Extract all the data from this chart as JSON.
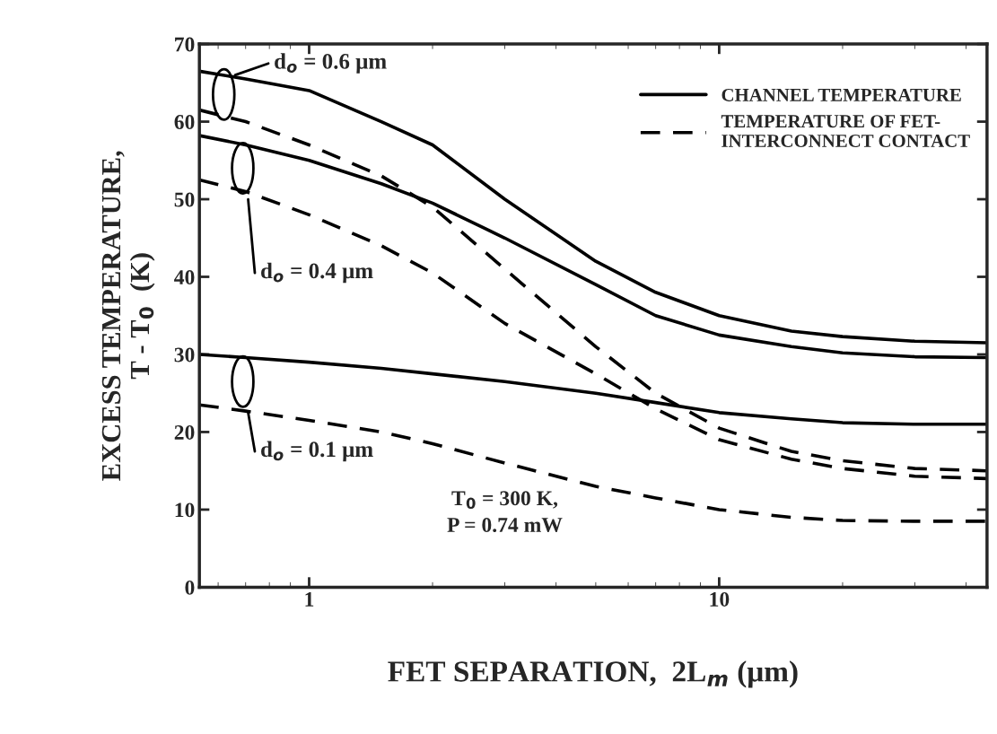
{
  "chart_data": {
    "type": "line",
    "xlabel": "FET SEPARATION,  2L$_{m}$ (μm)",
    "ylabel": "EXCESS TEMPERATURE,\nT - T$_{0}$  (K)",
    "log": "x",
    "xlim": [
      0.54,
      45
    ],
    "xticks": [
      1,
      10
    ],
    "ylim": [
      0,
      70
    ],
    "yticks": [
      0,
      10,
      20,
      30,
      40,
      50,
      60,
      70
    ],
    "legend": "top right",
    "grid": false,
    "marker": "none",
    "series": [
      {
        "name": "CHANNEL TEMPERATURE",
        "color": "#000000",
        "line_style": "solid",
        "x": [
          0.54,
          0.7,
          1,
          1.5,
          2,
          3,
          5,
          7,
          10,
          15,
          20,
          30,
          45
        ],
        "values": [
          66.5,
          65.5,
          64,
          60,
          57,
          50,
          42,
          38,
          35,
          33,
          32.3,
          31.7,
          31.5
        ]
      },
      {
        "color": "#000000",
        "line_style": "solid",
        "x": [
          0.54,
          0.7,
          1,
          1.5,
          2,
          3,
          5,
          7,
          10,
          15,
          20,
          30,
          45
        ],
        "values": [
          58.2,
          57,
          55,
          52,
          49.5,
          45,
          39,
          35,
          32.5,
          31,
          30.2,
          29.7,
          29.6
        ]
      },
      {
        "color": "#000000",
        "line_style": "solid",
        "x": [
          0.54,
          0.7,
          1,
          1.5,
          2,
          3,
          5,
          7,
          10,
          15,
          20,
          30,
          45
        ],
        "values": [
          30,
          29.6,
          29,
          28.2,
          27.5,
          26.5,
          25,
          23.8,
          22.5,
          21.7,
          21.2,
          21,
          21
        ]
      },
      {
        "name": "TEMPERATURE OF FET-\nINTERCONNECT CONTACT",
        "color": "#000000",
        "line_style": "dashed",
        "x": [
          0.54,
          0.7,
          1,
          1.5,
          2,
          3,
          5,
          7,
          10,
          15,
          20,
          30,
          45
        ],
        "values": [
          61.5,
          60,
          57,
          53,
          49,
          41,
          31,
          25,
          20.5,
          17.5,
          16.3,
          15.3,
          15
        ]
      },
      {
        "color": "#000000",
        "line_style": "dashed",
        "x": [
          0.54,
          0.7,
          1,
          1.5,
          2,
          3,
          5,
          7,
          10,
          15,
          20,
          30,
          45
        ],
        "values": [
          52.5,
          51,
          48,
          44,
          40.5,
          34,
          27.5,
          23,
          19,
          16.5,
          15.3,
          14.3,
          14
        ]
      },
      {
        "color": "#000000",
        "line_style": "dashed",
        "x": [
          0.54,
          0.7,
          1,
          1.5,
          2,
          3,
          5,
          7,
          10,
          15,
          20,
          30,
          45
        ],
        "values": [
          23.5,
          22.7,
          21.5,
          20,
          18.5,
          16,
          13,
          11.5,
          10,
          9,
          8.6,
          8.5,
          8.5
        ]
      }
    ],
    "annotations": [
      "d$_{o}$ = 0.6 μm",
      "d$_{o}$ = 0.4 μm",
      "d$_{o}$ = 0.1 μm",
      "T$_{0}$ = 300 K,\nP = 0.74 mW"
    ]
  }
}
